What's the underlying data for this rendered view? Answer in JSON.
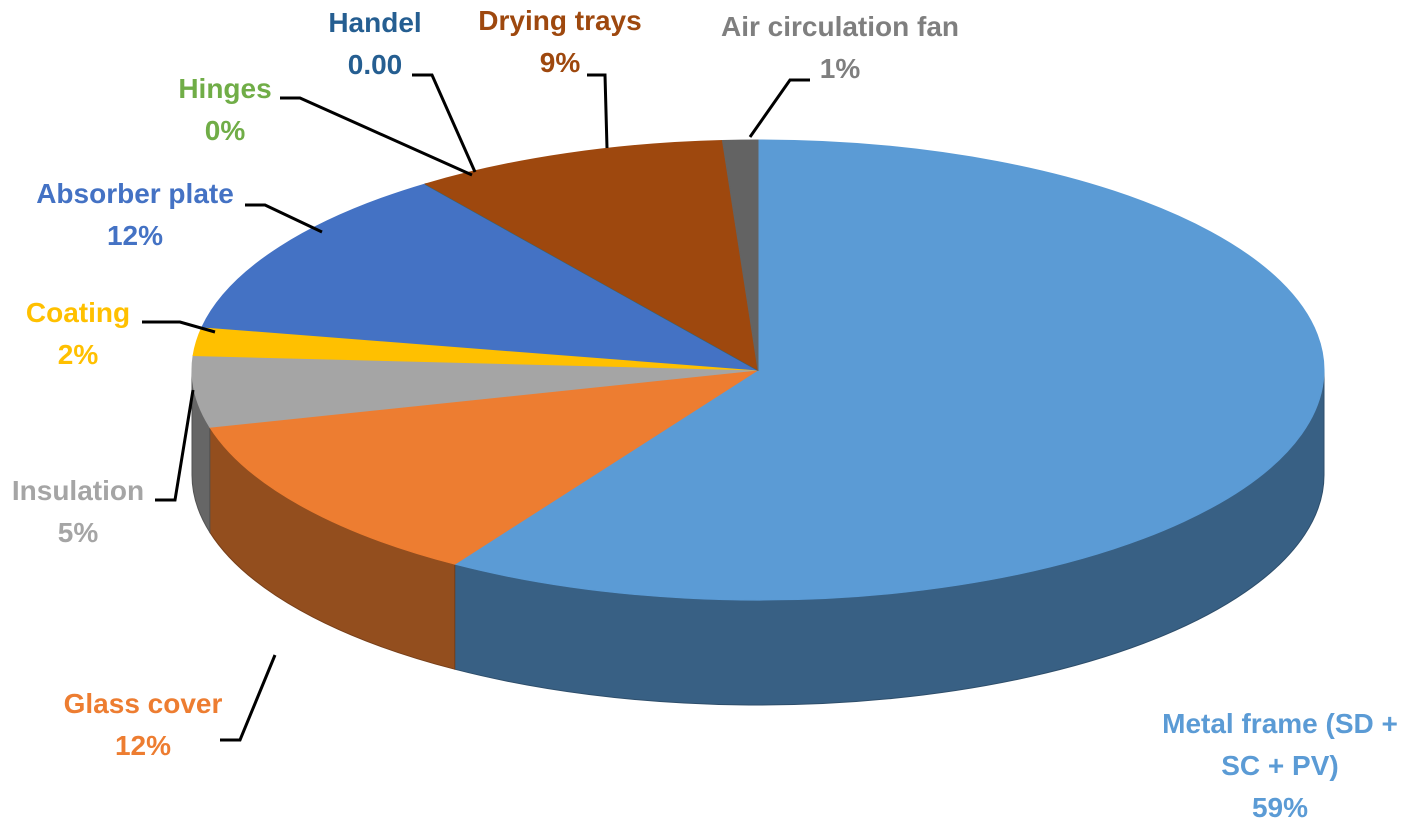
{
  "chart_data": {
    "type": "pie",
    "categories": [
      "Metal frame (SD + SC + PV)",
      "Glass cover",
      "Insulation",
      "Coating",
      "Absorber plate",
      "Hinges",
      "Handel",
      "Drying trays",
      "Air circulation fan"
    ],
    "values": [
      59,
      12,
      5,
      2,
      12,
      0,
      0,
      9,
      1
    ],
    "value_labels": [
      "59%",
      "12%",
      "5%",
      "2%",
      "12%",
      "0%",
      "0.00",
      "9%",
      "1%"
    ],
    "colors": [
      "#5b9bd5",
      "#ed7d31",
      "#a5a5a5",
      "#ffc000",
      "#4472c4",
      "#70ad47",
      "#255e91",
      "#9e480e",
      "#636363"
    ]
  }
}
